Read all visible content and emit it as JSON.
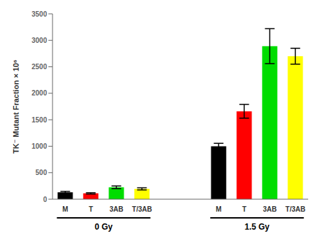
{
  "chart_data": {
    "type": "bar",
    "categories": [
      "M",
      "T",
      "3AB",
      "T/3AB"
    ],
    "colors": [
      "#000000",
      "#ff0000",
      "#00dd00",
      "#ffff00"
    ],
    "ylabel": "TK⁻ Mutant Fraction × 10⁶",
    "ylim": [
      0,
      3500
    ],
    "yticks": [
      0,
      500,
      1000,
      1500,
      2000,
      2500,
      3000,
      3500
    ],
    "grid": false,
    "series": [
      {
        "name": "0 Gy",
        "values": [
          130,
          110,
          225,
          195
        ],
        "errors": [
          18,
          12,
          25,
          20
        ]
      },
      {
        "name": "1.5 Gy",
        "values": [
          1000,
          1660,
          2890,
          2700
        ],
        "errors": [
          55,
          130,
          330,
          150
        ]
      }
    ]
  }
}
